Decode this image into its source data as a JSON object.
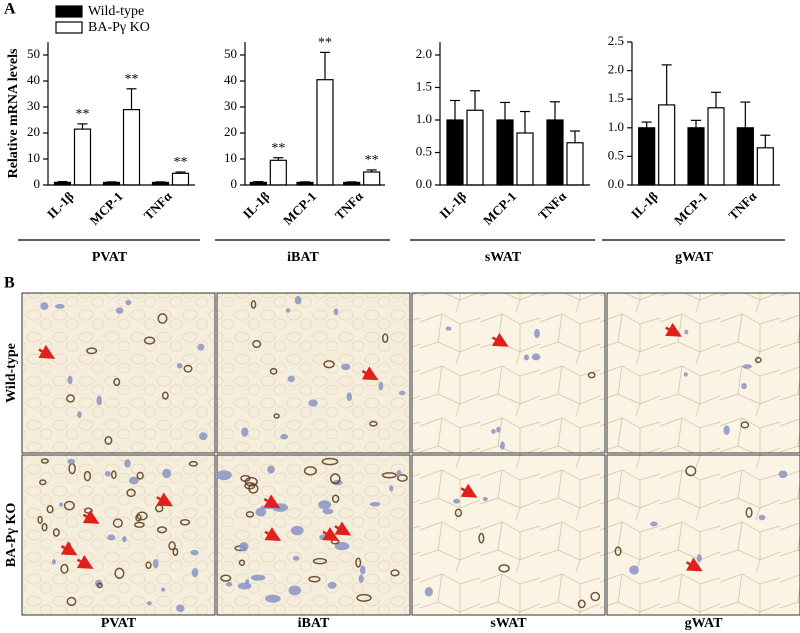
{
  "panels": {
    "a_label": "A",
    "b": {
      "label": "B",
      "rows": [
        "Wild-type",
        "BA-Pγ KO"
      ],
      "columns": [
        "PVAT",
        "iBAT",
        "sWAT",
        "gWAT"
      ]
    }
  },
  "chart_data": [
    {
      "type": "bar",
      "y_label": "Relative mRNA levels",
      "x_label": "PVAT",
      "categories": [
        "IL-1β",
        "MCP-1",
        "TNFα"
      ],
      "series": [
        {
          "name": "Wild-type",
          "color": "#000000",
          "values": [
            1,
            1,
            1
          ],
          "errors": [
            0.3,
            0.2,
            0.2
          ]
        },
        {
          "name": "BA-Pγ KO",
          "color": "#ffffff",
          "values": [
            21.5,
            29,
            4.5
          ],
          "errors": [
            2,
            8,
            0.5
          ],
          "significance": [
            "**",
            "**",
            "**"
          ]
        }
      ],
      "ylim": [
        0,
        55
      ],
      "yticks": [
        0,
        10,
        20,
        30,
        40,
        50
      ]
    },
    {
      "type": "bar",
      "x_label": "iBAT",
      "categories": [
        "IL-1β",
        "MCP-1",
        "TNFα"
      ],
      "series": [
        {
          "color": "#000000",
          "values": [
            1,
            1,
            1
          ],
          "errors": [
            0.3,
            0.2,
            0.2
          ]
        },
        {
          "color": "#ffffff",
          "values": [
            9.5,
            40.5,
            5
          ],
          "errors": [
            1,
            10.5,
            0.8
          ],
          "significance": [
            "**",
            "**",
            "**"
          ]
        }
      ],
      "ylim": [
        0,
        55
      ],
      "yticks": [
        0,
        10,
        20,
        30,
        40,
        50
      ]
    },
    {
      "type": "bar",
      "x_label": "sWAT",
      "categories": [
        "IL-1β",
        "MCP-1",
        "TNFα"
      ],
      "series": [
        {
          "color": "#000000",
          "values": [
            1.0,
            1.0,
            1.0
          ],
          "errors": [
            0.3,
            0.27,
            0.28
          ]
        },
        {
          "color": "#ffffff",
          "values": [
            1.15,
            0.8,
            0.65
          ],
          "errors": [
            0.3,
            0.33,
            0.18
          ]
        }
      ],
      "ylim": [
        0,
        2.2
      ],
      "yticks": [
        {
          "value": 0,
          "label": "0.0"
        },
        0.5,
        {
          "value": 1,
          "label": "1.0"
        },
        1.5,
        {
          "value": 2,
          "label": "2.0"
        }
      ]
    },
    {
      "type": "bar",
      "x_label": "gWAT",
      "categories": [
        "IL-1β",
        "MCP-1",
        "TNFα"
      ],
      "series": [
        {
          "color": "#000000",
          "values": [
            1.0,
            1.0,
            1.0
          ],
          "errors": [
            0.1,
            0.13,
            0.45
          ]
        },
        {
          "color": "#ffffff",
          "values": [
            1.4,
            1.35,
            0.65
          ],
          "errors": [
            0.7,
            0.27,
            0.22
          ]
        }
      ],
      "ylim": [
        0,
        2.5
      ],
      "yticks": [
        {
          "value": 0,
          "label": "0.0"
        },
        0.5,
        {
          "value": 1,
          "label": "1.0"
        },
        1.5,
        {
          "value": 2,
          "label": "2.0"
        },
        2.5
      ]
    }
  ]
}
